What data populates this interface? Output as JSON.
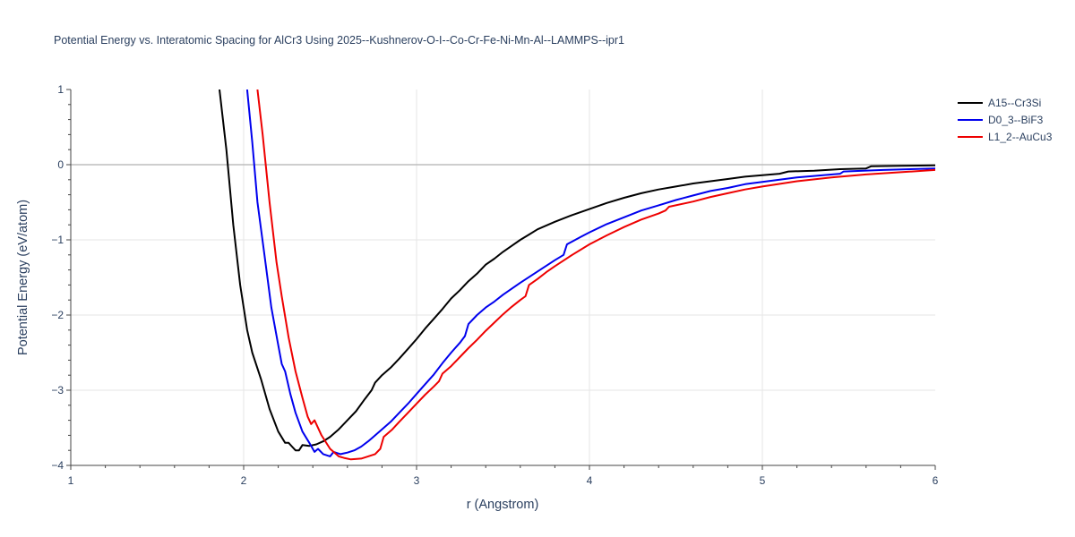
{
  "chart_data": {
    "type": "line",
    "title": "Potential Energy vs. Interatomic Spacing for AlCr3 Using 2025--Kushnerov-O-I--Co-Cr-Fe-Ni-Mn-Al--LAMMPS--ipr1",
    "xlabel": "r (Angstrom)",
    "ylabel": "Potential Energy (eV/atom)",
    "xlim": [
      1,
      6
    ],
    "ylim": [
      -4,
      1
    ],
    "xticks": [
      1,
      2,
      3,
      4,
      5,
      6
    ],
    "xtick_labels": [
      "1",
      "2",
      "3",
      "4",
      "5",
      "6"
    ],
    "yticks": [
      1,
      0,
      -1,
      -2,
      -3,
      -4
    ],
    "ytick_labels": [
      "1",
      "0",
      "−1",
      "−2",
      "−3",
      "−4"
    ],
    "grid": true,
    "legend_position": "top-right",
    "series": [
      {
        "name": "A15--Cr3Si",
        "color": "#000000",
        "points": [
          [
            1.86,
            1.0
          ],
          [
            1.9,
            0.2
          ],
          [
            1.94,
            -0.8
          ],
          [
            1.98,
            -1.6
          ],
          [
            2.02,
            -2.2
          ],
          [
            2.05,
            -2.5
          ],
          [
            2.1,
            -2.85
          ],
          [
            2.15,
            -3.25
          ],
          [
            2.2,
            -3.55
          ],
          [
            2.24,
            -3.7
          ],
          [
            2.26,
            -3.7
          ],
          [
            2.28,
            -3.75
          ],
          [
            2.3,
            -3.8
          ],
          [
            2.32,
            -3.8
          ],
          [
            2.34,
            -3.73
          ],
          [
            2.38,
            -3.74
          ],
          [
            2.42,
            -3.72
          ],
          [
            2.46,
            -3.68
          ],
          [
            2.5,
            -3.62
          ],
          [
            2.55,
            -3.52
          ],
          [
            2.6,
            -3.4
          ],
          [
            2.65,
            -3.28
          ],
          [
            2.7,
            -3.12
          ],
          [
            2.74,
            -3.0
          ],
          [
            2.76,
            -2.9
          ],
          [
            2.8,
            -2.8
          ],
          [
            2.85,
            -2.7
          ],
          [
            2.9,
            -2.58
          ],
          [
            2.95,
            -2.45
          ],
          [
            3.0,
            -2.32
          ],
          [
            3.05,
            -2.18
          ],
          [
            3.1,
            -2.05
          ],
          [
            3.15,
            -1.92
          ],
          [
            3.2,
            -1.78
          ],
          [
            3.25,
            -1.67
          ],
          [
            3.3,
            -1.55
          ],
          [
            3.35,
            -1.45
          ],
          [
            3.4,
            -1.33
          ],
          [
            3.45,
            -1.25
          ],
          [
            3.5,
            -1.16
          ],
          [
            3.55,
            -1.08
          ],
          [
            3.6,
            -1.0
          ],
          [
            3.65,
            -0.93
          ],
          [
            3.7,
            -0.86
          ],
          [
            3.8,
            -0.76
          ],
          [
            3.9,
            -0.67
          ],
          [
            4.0,
            -0.59
          ],
          [
            4.1,
            -0.51
          ],
          [
            4.2,
            -0.44
          ],
          [
            4.3,
            -0.38
          ],
          [
            4.4,
            -0.33
          ],
          [
            4.5,
            -0.29
          ],
          [
            4.6,
            -0.25
          ],
          [
            4.7,
            -0.22
          ],
          [
            4.8,
            -0.19
          ],
          [
            4.9,
            -0.16
          ],
          [
            5.0,
            -0.14
          ],
          [
            5.1,
            -0.12
          ],
          [
            5.15,
            -0.09
          ],
          [
            5.3,
            -0.08
          ],
          [
            5.45,
            -0.06
          ],
          [
            5.6,
            -0.05
          ],
          [
            5.63,
            -0.02
          ],
          [
            5.8,
            -0.015
          ],
          [
            6.0,
            -0.01
          ]
        ]
      },
      {
        "name": "D0_3--BiF3",
        "color": "#0000ee",
        "points": [
          [
            2.02,
            1.0
          ],
          [
            2.05,
            0.3
          ],
          [
            2.08,
            -0.5
          ],
          [
            2.12,
            -1.2
          ],
          [
            2.16,
            -1.9
          ],
          [
            2.2,
            -2.4
          ],
          [
            2.22,
            -2.65
          ],
          [
            2.24,
            -2.75
          ],
          [
            2.27,
            -3.05
          ],
          [
            2.3,
            -3.3
          ],
          [
            2.34,
            -3.55
          ],
          [
            2.38,
            -3.7
          ],
          [
            2.41,
            -3.82
          ],
          [
            2.43,
            -3.78
          ],
          [
            2.46,
            -3.85
          ],
          [
            2.5,
            -3.88
          ],
          [
            2.52,
            -3.82
          ],
          [
            2.56,
            -3.85
          ],
          [
            2.6,
            -3.83
          ],
          [
            2.64,
            -3.8
          ],
          [
            2.68,
            -3.75
          ],
          [
            2.72,
            -3.68
          ],
          [
            2.75,
            -3.62
          ],
          [
            2.8,
            -3.52
          ],
          [
            2.85,
            -3.42
          ],
          [
            2.9,
            -3.3
          ],
          [
            2.95,
            -3.18
          ],
          [
            3.0,
            -3.05
          ],
          [
            3.05,
            -2.92
          ],
          [
            3.1,
            -2.79
          ],
          [
            3.15,
            -2.64
          ],
          [
            3.2,
            -2.5
          ],
          [
            3.25,
            -2.37
          ],
          [
            3.28,
            -2.28
          ],
          [
            3.3,
            -2.12
          ],
          [
            3.35,
            -2.0
          ],
          [
            3.4,
            -1.9
          ],
          [
            3.45,
            -1.82
          ],
          [
            3.5,
            -1.73
          ],
          [
            3.6,
            -1.57
          ],
          [
            3.7,
            -1.42
          ],
          [
            3.8,
            -1.27
          ],
          [
            3.85,
            -1.2
          ],
          [
            3.87,
            -1.06
          ],
          [
            3.95,
            -0.96
          ],
          [
            4.0,
            -0.9
          ],
          [
            4.1,
            -0.79
          ],
          [
            4.2,
            -0.7
          ],
          [
            4.3,
            -0.61
          ],
          [
            4.4,
            -0.54
          ],
          [
            4.5,
            -0.47
          ],
          [
            4.6,
            -0.41
          ],
          [
            4.7,
            -0.35
          ],
          [
            4.8,
            -0.31
          ],
          [
            4.9,
            -0.26
          ],
          [
            5.0,
            -0.23
          ],
          [
            5.2,
            -0.17
          ],
          [
            5.45,
            -0.12
          ],
          [
            5.47,
            -0.09
          ],
          [
            5.7,
            -0.07
          ],
          [
            6.0,
            -0.05
          ]
        ]
      },
      {
        "name": "L1_2--AuCu3",
        "color": "#ee0000",
        "points": [
          [
            2.08,
            1.0
          ],
          [
            2.11,
            0.4
          ],
          [
            2.15,
            -0.5
          ],
          [
            2.19,
            -1.3
          ],
          [
            2.22,
            -1.75
          ],
          [
            2.26,
            -2.3
          ],
          [
            2.3,
            -2.75
          ],
          [
            2.34,
            -3.1
          ],
          [
            2.37,
            -3.35
          ],
          [
            2.39,
            -3.45
          ],
          [
            2.41,
            -3.4
          ],
          [
            2.45,
            -3.6
          ],
          [
            2.5,
            -3.78
          ],
          [
            2.55,
            -3.88
          ],
          [
            2.58,
            -3.9
          ],
          [
            2.62,
            -3.92
          ],
          [
            2.68,
            -3.91
          ],
          [
            2.72,
            -3.88
          ],
          [
            2.76,
            -3.85
          ],
          [
            2.79,
            -3.78
          ],
          [
            2.81,
            -3.62
          ],
          [
            2.86,
            -3.52
          ],
          [
            2.9,
            -3.42
          ],
          [
            2.95,
            -3.3
          ],
          [
            3.0,
            -3.18
          ],
          [
            3.05,
            -3.06
          ],
          [
            3.1,
            -2.95
          ],
          [
            3.13,
            -2.88
          ],
          [
            3.15,
            -2.78
          ],
          [
            3.2,
            -2.68
          ],
          [
            3.25,
            -2.56
          ],
          [
            3.3,
            -2.44
          ],
          [
            3.35,
            -2.33
          ],
          [
            3.4,
            -2.21
          ],
          [
            3.45,
            -2.1
          ],
          [
            3.5,
            -1.99
          ],
          [
            3.55,
            -1.89
          ],
          [
            3.6,
            -1.8
          ],
          [
            3.63,
            -1.75
          ],
          [
            3.65,
            -1.6
          ],
          [
            3.7,
            -1.52
          ],
          [
            3.75,
            -1.43
          ],
          [
            3.8,
            -1.35
          ],
          [
            3.9,
            -1.2
          ],
          [
            4.0,
            -1.06
          ],
          [
            4.1,
            -0.94
          ],
          [
            4.2,
            -0.83
          ],
          [
            4.3,
            -0.73
          ],
          [
            4.4,
            -0.65
          ],
          [
            4.44,
            -0.61
          ],
          [
            4.46,
            -0.56
          ],
          [
            4.6,
            -0.49
          ],
          [
            4.7,
            -0.43
          ],
          [
            4.8,
            -0.38
          ],
          [
            4.9,
            -0.33
          ],
          [
            5.0,
            -0.29
          ],
          [
            5.2,
            -0.22
          ],
          [
            5.4,
            -0.17
          ],
          [
            5.6,
            -0.13
          ],
          [
            5.8,
            -0.1
          ],
          [
            6.0,
            -0.07
          ]
        ]
      }
    ]
  }
}
